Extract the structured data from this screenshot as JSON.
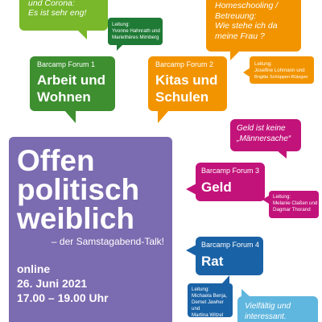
{
  "colors": {
    "green": "#3d8f2f",
    "lime": "#78b82a",
    "orange": "#f29400",
    "magenta": "#c2137a",
    "purple": "#7b6bb0",
    "blue": "#1a62a6",
    "lightblue": "#5fb6de",
    "darkgreen": "#1e7a35"
  },
  "top_left_bubble": {
    "line1": "und Corona:",
    "line2": "Es ist sehr eng!"
  },
  "leitung_1": {
    "label": "Leitung:",
    "names1": "Yvonne Hahnrath und",
    "names2": "Mariethères Mimberg"
  },
  "top_right_bubble": {
    "line1": "Homeschooling /",
    "line2": "Betreuung:",
    "line3": "Wie stehe ich da",
    "line4": "meine Frau ?"
  },
  "forum1": {
    "kicker": "Barcamp Forum 1",
    "title1": "Arbeit und",
    "title2": "Wohnen"
  },
  "forum2": {
    "kicker": "Barcamp Forum 2",
    "title1": "Kitas und",
    "title2": "Schulen"
  },
  "leitung_2": {
    "label": "Leitung:",
    "names1": "Josefine Lohmann und",
    "names2": "Brigitta Schüppen-Bützgen"
  },
  "geld_quote": {
    "line1": "Geld ist keine",
    "line2": "„Männersache“"
  },
  "main": {
    "title1": "Offen",
    "title2": "politisch",
    "title3": "weiblich",
    "subtitle": "– der Samstagabend-Talk!",
    "online": "online",
    "date": "26. Juni 2021",
    "time": "17.00 – 19.00 Uhr"
  },
  "forum3": {
    "kicker": "Barcamp Forum 3",
    "title": "Geld"
  },
  "leitung_3": {
    "label": "Leitung:",
    "names1": "Melanie Claßen und",
    "names2": "Dagmar Thorand"
  },
  "forum4": {
    "kicker": "Barcamp Forum 4",
    "title": "Rat"
  },
  "leitung_4": {
    "label": "Leitung:",
    "names1": "Michaela Benja,",
    "names2": "Demet Jawher und",
    "names3": "Martina Witzel"
  },
  "bottom_bubble": {
    "line1": "Vielfältig und",
    "line2": "interessant."
  }
}
